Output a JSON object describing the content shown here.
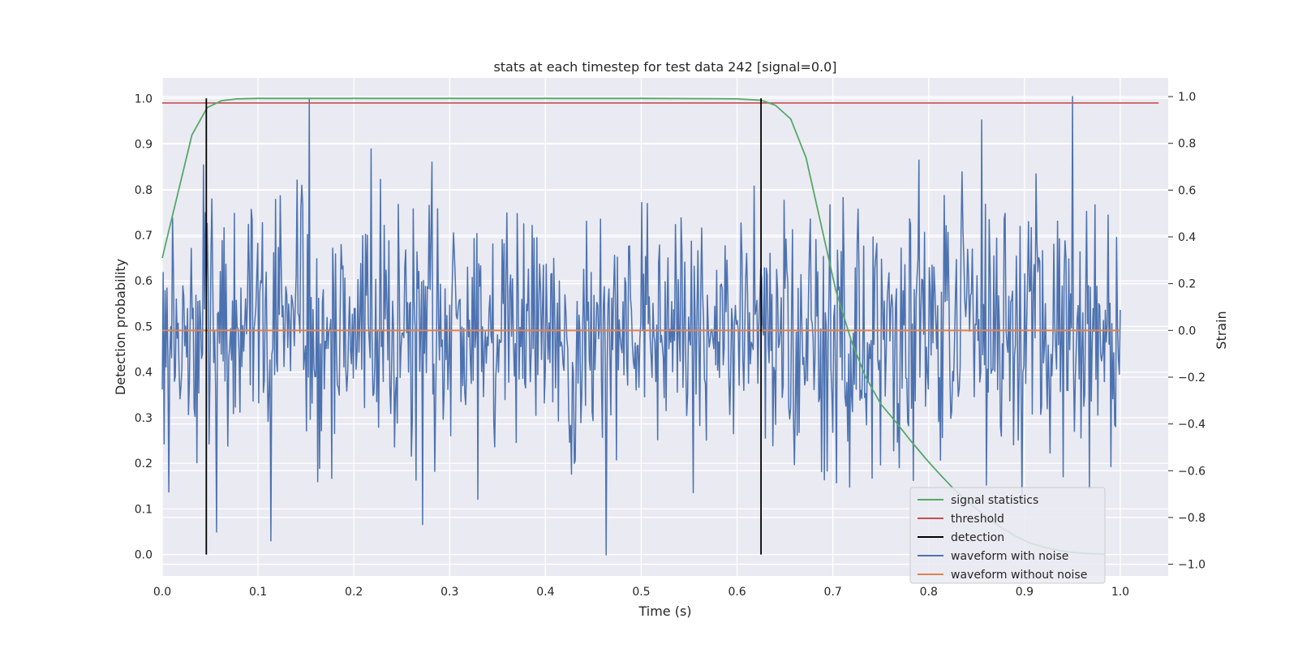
{
  "chart_data": {
    "type": "line",
    "title": "stats at each timestep for test data 242 [signal=0.0]",
    "xlabel": "Time (s)",
    "ylabel_left": "Detection probability",
    "ylabel_right": "Strain",
    "xlim": [
      0.0,
      1.05
    ],
    "ylim_left": [
      -0.047,
      1.045
    ],
    "ylim_right": [
      -1.05,
      1.08
    ],
    "xticks": [
      0.0,
      0.1,
      0.2,
      0.3,
      0.4,
      0.5,
      0.6,
      0.7,
      0.8,
      0.9,
      1.0
    ],
    "xtick_labels": [
      "0.0",
      "0.1",
      "0.2",
      "0.3",
      "0.4",
      "0.5",
      "0.6",
      "0.7",
      "0.8",
      "0.9",
      "1.0"
    ],
    "yticks_left": [
      0.0,
      0.1,
      0.2,
      0.3,
      0.4,
      0.5,
      0.6,
      0.7,
      0.8,
      0.9,
      1.0
    ],
    "ytick_labels_left": [
      "0.0",
      "0.1",
      "0.2",
      "0.3",
      "0.4",
      "0.5",
      "0.6",
      "0.7",
      "0.8",
      "0.9",
      "1.0"
    ],
    "yticks_right": [
      -1.0,
      -0.8,
      -0.6,
      -0.4,
      -0.2,
      0.0,
      0.2,
      0.4,
      0.6,
      0.8,
      1.0
    ],
    "ytick_labels_right": [
      "−1.0",
      "−0.8",
      "−0.6",
      "−0.4",
      "−0.2",
      "0.0",
      "0.2",
      "0.4",
      "0.6",
      "0.8",
      "1.0"
    ],
    "grid": true,
    "legend_position": "lower-right",
    "signal_statistics": {
      "name": "signal statistics",
      "color": "#55a868",
      "axis": "left",
      "x": [
        0.0,
        0.031,
        0.047,
        0.062,
        0.078,
        0.1,
        0.2,
        0.3,
        0.4,
        0.5,
        0.6,
        0.625,
        0.64,
        0.656,
        0.672,
        0.688,
        0.703,
        0.719,
        0.734,
        0.75,
        0.766,
        0.781,
        0.797,
        0.812,
        0.828,
        0.844,
        0.859,
        0.875,
        0.891,
        0.906,
        0.922,
        0.938,
        0.953,
        0.969,
        0.984
      ],
      "y": [
        0.65,
        0.92,
        0.98,
        0.995,
        0.999,
        1.0,
        1.0,
        1.0,
        1.0,
        1.0,
        0.999,
        0.996,
        0.985,
        0.955,
        0.87,
        0.72,
        0.58,
        0.47,
        0.39,
        0.33,
        0.29,
        0.25,
        0.21,
        0.175,
        0.14,
        0.11,
        0.085,
        0.06,
        0.04,
        0.025,
        0.015,
        0.008,
        0.004,
        0.002,
        0.001
      ]
    },
    "threshold": {
      "name": "threshold",
      "color": "#c44e52",
      "axis": "left",
      "value": 0.99,
      "x_range": [
        0.0,
        1.04
      ]
    },
    "detection": {
      "name": "detection",
      "color": "#000000",
      "axis": "left",
      "x_values": [
        0.046,
        0.625
      ],
      "y_range": [
        0.0,
        1.0
      ]
    },
    "waveform_with_noise": {
      "name": "waveform with noise",
      "color": "#4c72b0",
      "axis": "right",
      "n_points": 1024,
      "x_range": [
        0.0,
        1.0
      ],
      "range": [
        -0.96,
        1.0
      ],
      "peaks": [
        {
          "x": 0.153,
          "y": 0.99
        },
        {
          "x": 0.95,
          "y": 1.0
        },
        {
          "x": 0.463,
          "y": -0.96
        },
        {
          "x": 0.272,
          "y": -0.83
        }
      ]
    },
    "waveform_without_noise": {
      "name": "waveform without noise",
      "color": "#dd8452",
      "axis": "right",
      "value": 0.0,
      "x_range": [
        0.0,
        1.0
      ]
    }
  },
  "style": {
    "plot_background": "#eaeaf2",
    "grid_color": "#ffffff"
  }
}
